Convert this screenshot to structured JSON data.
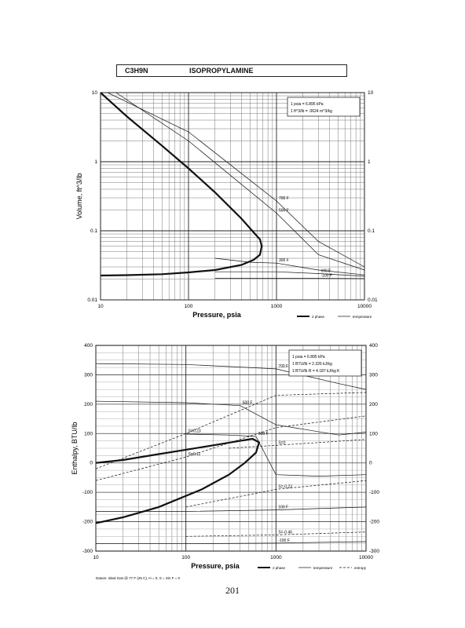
{
  "header": {
    "formula": "C3H9N",
    "name": "ISOPROPYLAMINE"
  },
  "page_number": "201",
  "chart_data": [
    {
      "type": "line",
      "xscale": "log",
      "yscale": "log",
      "xlim": [
        10,
        10000
      ],
      "ylim": [
        0.01,
        10
      ],
      "xlabel": "Pressure, psia",
      "ylabel": "Volume, ft^3/lb",
      "x_ticks": [
        "10",
        "100",
        "1000",
        "10000"
      ],
      "y_ticks": [
        "0.01",
        "0.1",
        "1",
        "10"
      ],
      "info_box": [
        "1 psia = 6.895 kPa",
        "1 ft^3/lb = .0624 m^3/kg"
      ],
      "legend": [
        {
          "label": "2 phase",
          "style": "thick"
        },
        {
          "label": "temperature",
          "style": "thin"
        }
      ],
      "grid": true,
      "series": [
        {
          "kind": "2phase",
          "x": [
            10,
            20,
            50,
            100,
            200,
            400,
            550,
            650,
            680,
            650,
            550,
            400,
            200,
            100,
            50,
            20,
            10
          ],
          "y": [
            10,
            4.5,
            1.7,
            0.8,
            0.36,
            0.15,
            0.095,
            0.075,
            0.06,
            0.045,
            0.038,
            0.032,
            0.027,
            0.025,
            0.0235,
            0.0228,
            0.0225
          ]
        },
        {
          "kind": "temperature",
          "name": "700 F",
          "x": [
            12,
            100,
            1000,
            3000,
            10000
          ],
          "y": [
            10,
            2.7,
            0.27,
            0.07,
            0.03
          ]
        },
        {
          "kind": "temperature",
          "name": "500 F",
          "x": [
            15,
            100,
            1000,
            3000,
            10000
          ],
          "y": [
            10,
            2.0,
            0.18,
            0.045,
            0.027
          ]
        },
        {
          "kind": "temperature",
          "name": "300 F",
          "x": [
            200,
            500,
            1000,
            3000,
            10000
          ],
          "y": [
            0.04,
            0.035,
            0.034,
            0.027,
            0.023
          ]
        },
        {
          "kind": "temperature",
          "name": "100 F",
          "x": [
            200,
            1000,
            3000,
            10000
          ],
          "y": [
            0.0255,
            0.0255,
            0.024,
            0.022
          ]
        },
        {
          "kind": "temperature",
          "name": "-100 F",
          "x": [
            200,
            1000,
            3000,
            10000
          ],
          "y": [
            0.0205,
            0.0205,
            0.0205,
            0.0203
          ]
        }
      ]
    },
    {
      "type": "line",
      "xscale": "log",
      "yscale": "linear",
      "xlim": [
        10,
        10000
      ],
      "ylim": [
        -300,
        400
      ],
      "xlabel": "Pressure, psia",
      "ylabel": "Enthalpy, BTU/lb",
      "x_ticks": [
        "10",
        "100",
        "1000",
        "10000"
      ],
      "y_ticks": [
        "-300",
        "-200",
        "-100",
        "0",
        "100",
        "200",
        "300",
        "400"
      ],
      "info_box": [
        "1 psia = 6.895 kPa",
        "1 BTU/lb = 2.326 kJ/kg",
        "1 BTU/lb R = 4.187 kJ/kg K"
      ],
      "footnote": "Datum: Ideal Gas @ 77 F (25 C), H = 0, S = Sin F = 0",
      "legend": [
        {
          "label": "2 phase",
          "style": "thick"
        },
        {
          "label": "temperature",
          "style": "thin"
        },
        {
          "label": "entropy",
          "style": "dashed"
        }
      ],
      "grid": true,
      "series": [
        {
          "kind": "2phase",
          "x": [
            10,
            20,
            50,
            100,
            200,
            400,
            550,
            650,
            600,
            450,
            300,
            150,
            50,
            20,
            10
          ],
          "y": [
            0,
            10,
            30,
            45,
            60,
            75,
            82,
            70,
            35,
            0,
            -40,
            -90,
            -150,
            -185,
            -205
          ]
        },
        {
          "kind": "temperature",
          "name": "700 F",
          "x": [
            10,
            100,
            1000,
            5000,
            10000
          ],
          "y": [
            338,
            335,
            320,
            270,
            250
          ]
        },
        {
          "kind": "temperature",
          "name": "500 F",
          "x": [
            10,
            100,
            400,
            1000,
            5000,
            10000
          ],
          "y": [
            210,
            205,
            195,
            130,
            95,
            105
          ]
        },
        {
          "kind": "temperature",
          "name": "300 F",
          "x": [
            100,
            300,
            600,
            1000,
            3000,
            10000
          ],
          "y": [
            98,
            95,
            90,
            -40,
            -45,
            -40
          ]
        },
        {
          "kind": "temperature",
          "name": "100 F",
          "x": [
            10,
            100,
            1000,
            10000
          ],
          "y": [
            -165,
            -165,
            -160,
            -150
          ]
        },
        {
          "kind": "temperature",
          "name": "-100 F",
          "x": [
            10,
            100,
            1000,
            10000
          ],
          "y": [
            -275,
            -275,
            -273,
            -268
          ]
        },
        {
          "kind": "entropy",
          "name": "S=0.23",
          "x": [
            10,
            100,
            1000,
            10000
          ],
          "y": [
            -20,
            100,
            230,
            240
          ]
        },
        {
          "kind": "entropy",
          "name": "S=0.11",
          "x": [
            10,
            100,
            1000,
            10000
          ],
          "y": [
            -60,
            20,
            120,
            160
          ]
        },
        {
          "kind": "entropy",
          "name": "S=0",
          "x": [
            300,
            1000,
            10000
          ],
          "y": [
            50,
            60,
            80
          ]
        },
        {
          "kind": "entropy",
          "name": "S=-0.23",
          "x": [
            100,
            1000,
            10000
          ],
          "y": [
            -150,
            -90,
            -60
          ]
        },
        {
          "kind": "entropy",
          "name": "S=-0.46",
          "x": [
            100,
            1000,
            10000
          ],
          "y": [
            -250,
            -245,
            -235
          ]
        }
      ]
    }
  ]
}
